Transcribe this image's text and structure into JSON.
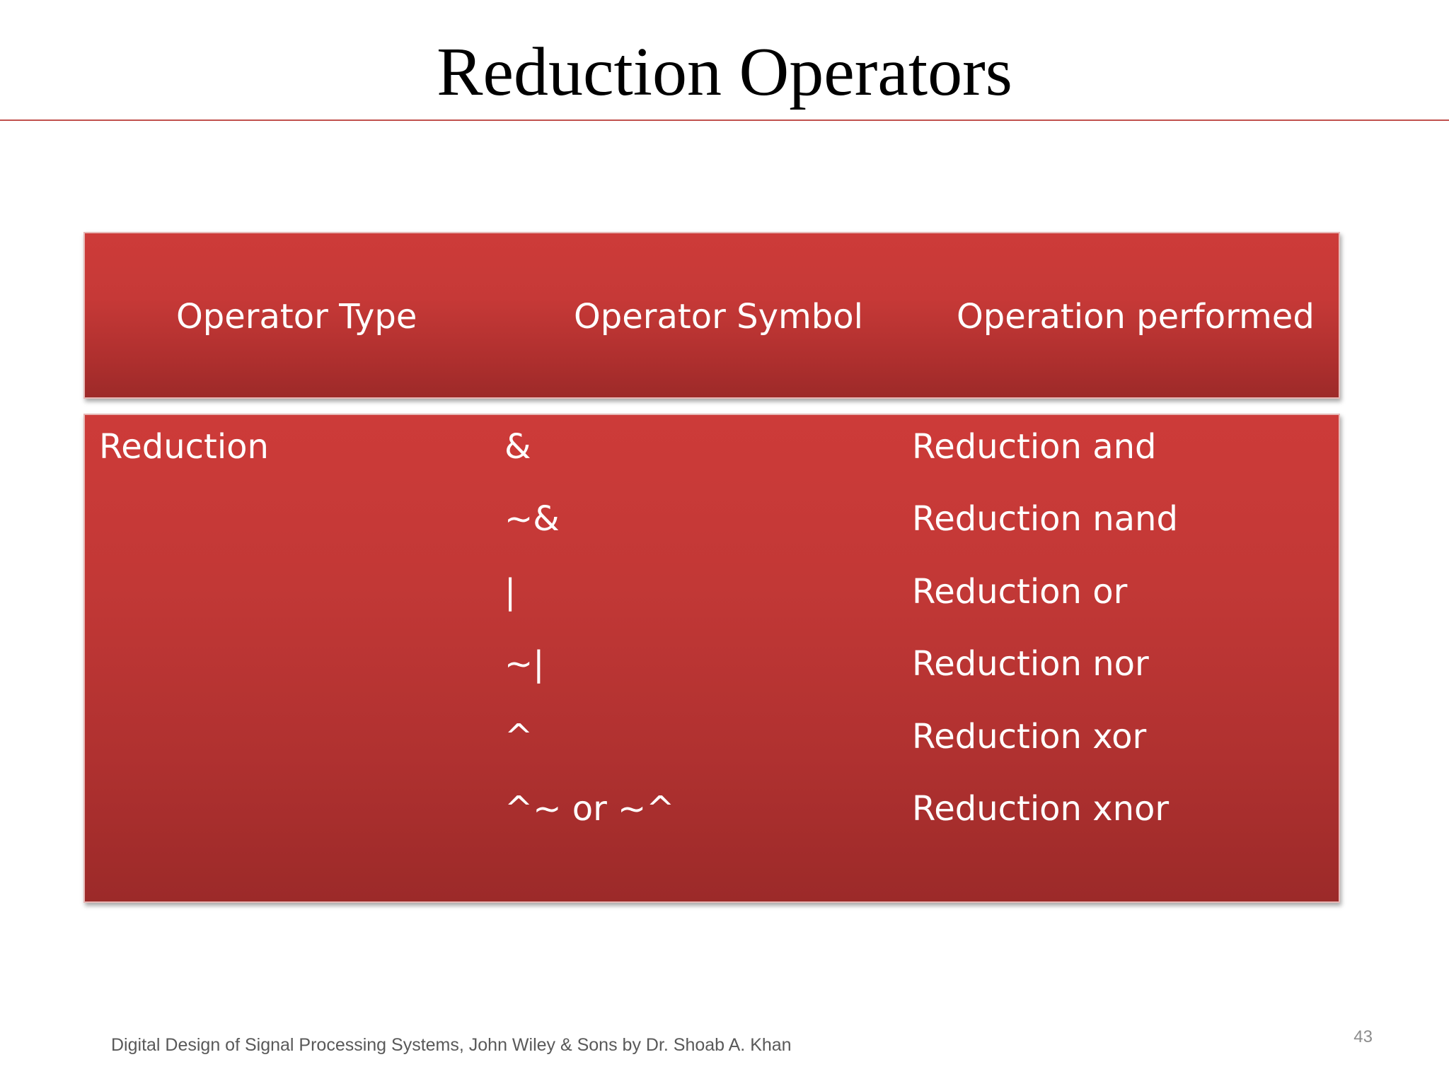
{
  "slide": {
    "title": "Reduction Operators",
    "table": {
      "headers": [
        "Operator Type",
        "Operator Symbol",
        "Operation performed"
      ],
      "operator_type": "Reduction",
      "rows": [
        {
          "symbol": "&",
          "operation": "Reduction and"
        },
        {
          "symbol": "~&",
          "operation": "Reduction nand"
        },
        {
          "symbol": "|",
          "operation": "Reduction or"
        },
        {
          "symbol": "~|",
          "operation": "Reduction nor"
        },
        {
          "symbol": "^",
          "operation": "Reduction xor"
        },
        {
          "symbol": "^~ or ~^",
          "operation": "Reduction xnor"
        }
      ]
    },
    "footer": "Digital Design of Signal Processing Systems, John Wiley & Sons by Dr. Shoab A. Khan",
    "page_number": "43"
  },
  "colors": {
    "accent_rule": "#c0504d",
    "table_fill": "#c0504d",
    "table_text": "#ffffff"
  }
}
